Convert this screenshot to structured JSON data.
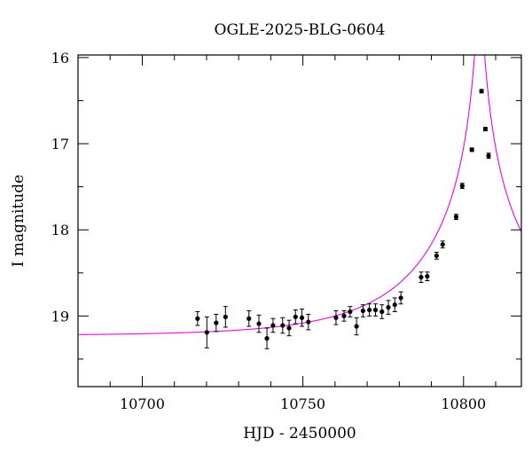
{
  "chart_data": {
    "type": "scatter",
    "title": "OGLE-2025-BLG-0604",
    "xlabel": "HJD - 2450000",
    "ylabel": "I magnitude",
    "xlim": [
      10680,
      10818
    ],
    "ylim": [
      19.82,
      15.97
    ],
    "y_inverted": true,
    "x_ticks": [
      10700,
      10750,
      10800
    ],
    "x_minor_step": 10,
    "y_ticks": [
      16,
      17,
      18,
      19
    ],
    "y_minor_step": 0.5,
    "grid": false,
    "colors": {
      "data": "#000000",
      "model": "#ee00ee",
      "axis": "#000000"
    },
    "series": [
      {
        "kind": "points-with-errorbars",
        "points": [
          {
            "x": 10717.2,
            "y": 19.03,
            "err": 0.08
          },
          {
            "x": 10720.1,
            "y": 19.19,
            "err": 0.18
          },
          {
            "x": 10723.0,
            "y": 19.08,
            "err": 0.1
          },
          {
            "x": 10725.9,
            "y": 19.01,
            "err": 0.12
          },
          {
            "x": 10733.2,
            "y": 19.03,
            "err": 0.09
          },
          {
            "x": 10736.3,
            "y": 19.09,
            "err": 0.1
          },
          {
            "x": 10738.8,
            "y": 19.26,
            "err": 0.12
          },
          {
            "x": 10740.7,
            "y": 19.11,
            "err": 0.08
          },
          {
            "x": 10743.7,
            "y": 19.11,
            "err": 0.09
          },
          {
            "x": 10745.7,
            "y": 19.14,
            "err": 0.09
          },
          {
            "x": 10747.7,
            "y": 19.01,
            "err": 0.08
          },
          {
            "x": 10749.7,
            "y": 19.02,
            "err": 0.1
          },
          {
            "x": 10751.7,
            "y": 19.07,
            "err": 0.09
          },
          {
            "x": 10760.3,
            "y": 19.02,
            "err": 0.08
          },
          {
            "x": 10762.8,
            "y": 19.0,
            "err": 0.06
          },
          {
            "x": 10764.7,
            "y": 18.95,
            "err": 0.06
          },
          {
            "x": 10766.7,
            "y": 19.12,
            "err": 0.1
          },
          {
            "x": 10768.7,
            "y": 18.94,
            "err": 0.07
          },
          {
            "x": 10770.7,
            "y": 18.93,
            "err": 0.07
          },
          {
            "x": 10772.6,
            "y": 18.93,
            "err": 0.07
          },
          {
            "x": 10774.6,
            "y": 18.95,
            "err": 0.08
          },
          {
            "x": 10776.6,
            "y": 18.9,
            "err": 0.08
          },
          {
            "x": 10778.6,
            "y": 18.87,
            "err": 0.08
          },
          {
            "x": 10780.5,
            "y": 18.79,
            "err": 0.07
          },
          {
            "x": 10786.8,
            "y": 18.55,
            "err": 0.06
          },
          {
            "x": 10788.7,
            "y": 18.54,
            "err": 0.05
          },
          {
            "x": 10791.6,
            "y": 18.3,
            "err": 0.04
          },
          {
            "x": 10793.5,
            "y": 18.17,
            "err": 0.04
          },
          {
            "x": 10797.7,
            "y": 17.85,
            "err": 0.03
          },
          {
            "x": 10799.6,
            "y": 17.49,
            "err": 0.03
          },
          {
            "x": 10802.6,
            "y": 17.07,
            "err": 0.02
          },
          {
            "x": 10805.6,
            "y": 16.39,
            "err": 0.02
          },
          {
            "x": 10806.8,
            "y": 16.83,
            "err": 0.02
          },
          {
            "x": 10807.8,
            "y": 17.14,
            "err": 0.03
          }
        ]
      },
      {
        "kind": "model-curve",
        "model": {
          "t0": 10805.0,
          "tE": 38.0,
          "u0": 0.028,
          "baseline": 19.23
        }
      }
    ]
  }
}
